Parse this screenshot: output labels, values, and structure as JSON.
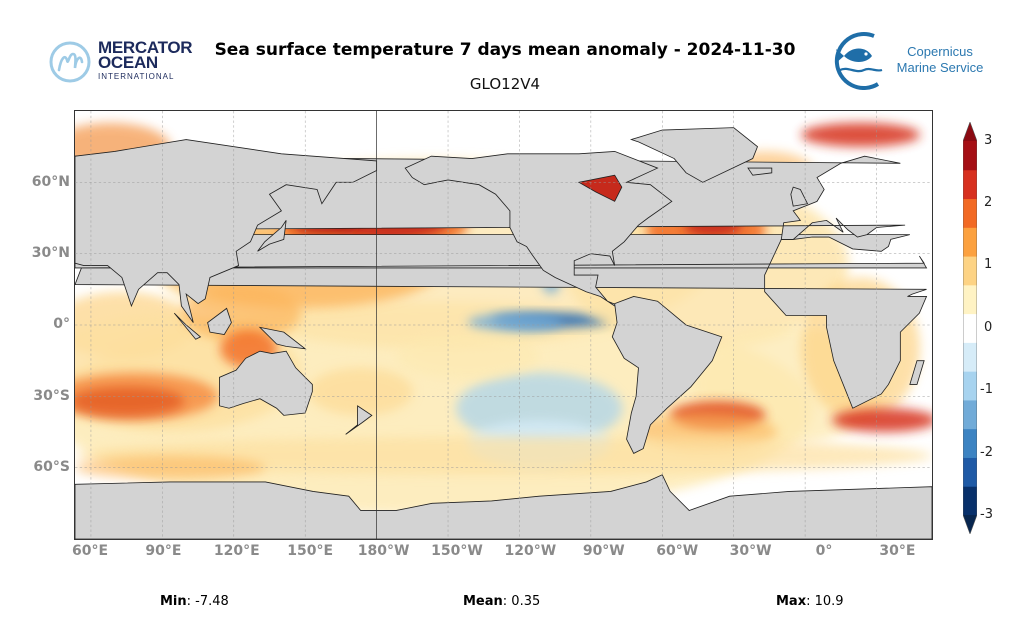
{
  "header": {
    "title": "Sea surface temperature 7 days mean anomaly - 2024-11-30",
    "subtitle": "GLO12V4",
    "logo_left": {
      "line1": "MERCATOR",
      "line2": "OCEAN",
      "line3": "INTERNATIONAL"
    },
    "logo_right": {
      "line1": "Copernicus",
      "line2": "Marine Service"
    }
  },
  "map": {
    "lat_labels": [
      "60°N",
      "30°N",
      "0°",
      "30°S",
      "60°S"
    ],
    "lon_labels": [
      "60°E",
      "90°E",
      "120°E",
      "150°E",
      "180°W",
      "150°W",
      "120°W",
      "90°W",
      "60°W",
      "30°W",
      "0°",
      "30°E"
    ],
    "land_color": "#d3d3d3"
  },
  "colorbar": {
    "ticks": [
      "3",
      "2",
      "1",
      "0",
      "-1",
      "-2",
      "-3"
    ],
    "range": [
      -3,
      3
    ],
    "colors": [
      "#08306b",
      "#1f5aa6",
      "#3c83c2",
      "#71abd8",
      "#a7d3ef",
      "#d6ecf8",
      "#ffffff",
      "#fff3c4",
      "#fdd384",
      "#fca13f",
      "#f26a24",
      "#d7301f",
      "#a50f15"
    ]
  },
  "stats": {
    "min_label": "Min",
    "min_value": ": -7.48",
    "mean_label": "Mean",
    "mean_value": ": 0.35",
    "max_label": "Max",
    "max_value": ": 10.9"
  }
}
